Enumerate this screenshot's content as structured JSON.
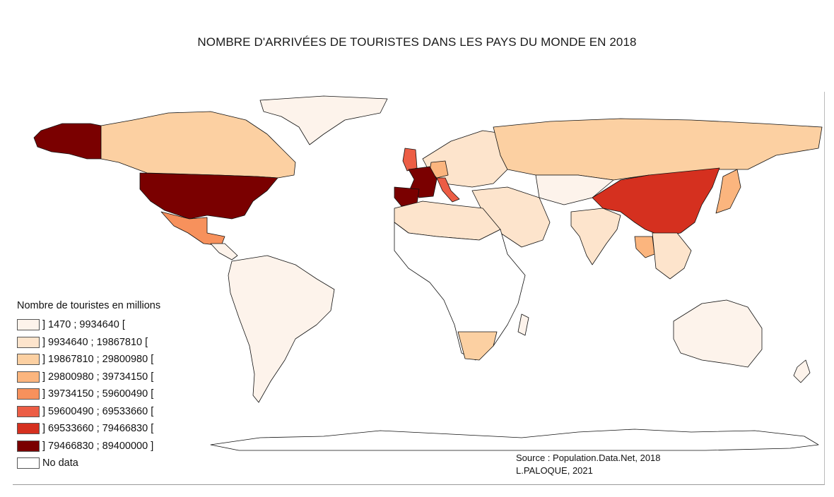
{
  "title": "NOMBRE D'ARRIVÉES DE TOURISTES DANS LES PAYS DU MONDE EN 2018",
  "legend": {
    "title": "Nombre de touristes en millions",
    "classes": [
      {
        "label": "] 1470 ; 9934640 [",
        "color": "#fdf3eb"
      },
      {
        "label": "] 9934640 ; 19867810 [",
        "color": "#fde4cc"
      },
      {
        "label": "] 19867810 ; 29800980 [",
        "color": "#fcd0a2"
      },
      {
        "label": "] 29800980 ; 39734150 [",
        "color": "#fbb57e"
      },
      {
        "label": "] 39734150 ; 59600490 [",
        "color": "#f7915c"
      },
      {
        "label": "] 59600490 ; 69533660 [",
        "color": "#ec5d45"
      },
      {
        "label": "] 69533660 ; 79466830 [",
        "color": "#d5301f"
      },
      {
        "label": "] 79466830 ; 89400000 ]",
        "color": "#7a0000"
      },
      {
        "label": "No data",
        "color": "#ffffff"
      }
    ]
  },
  "source": {
    "line1": "Source : Population.Data.Net, 2018",
    "line2": "L.PALOQUE, 2021"
  },
  "regions": [
    {
      "name": "alaska",
      "class": 7
    },
    {
      "name": "canada",
      "class": 2
    },
    {
      "name": "greenland",
      "class": 0
    },
    {
      "name": "united-states",
      "class": 7
    },
    {
      "name": "mexico",
      "class": 4
    },
    {
      "name": "central-america",
      "class": 0
    },
    {
      "name": "south-america",
      "class": 0
    },
    {
      "name": "europe",
      "class": 1
    },
    {
      "name": "france",
      "class": 7
    },
    {
      "name": "spain",
      "class": 7
    },
    {
      "name": "italy",
      "class": 5
    },
    {
      "name": "germany",
      "class": 3
    },
    {
      "name": "united-kingdom",
      "class": 5
    },
    {
      "name": "russia",
      "class": 2
    },
    {
      "name": "north-africa",
      "class": 1
    },
    {
      "name": "africa",
      "class": 8
    },
    {
      "name": "south-africa",
      "class": 2
    },
    {
      "name": "middle-east",
      "class": 1
    },
    {
      "name": "central-asia",
      "class": 0
    },
    {
      "name": "india",
      "class": 1
    },
    {
      "name": "china",
      "class": 6
    },
    {
      "name": "japan",
      "class": 3
    },
    {
      "name": "thailand",
      "class": 3
    },
    {
      "name": "southeast-asia",
      "class": 1
    },
    {
      "name": "australia",
      "class": 0
    },
    {
      "name": "new-zealand",
      "class": 0
    },
    {
      "name": "madagascar",
      "class": 0
    },
    {
      "name": "antarctica",
      "class": 8
    }
  ]
}
